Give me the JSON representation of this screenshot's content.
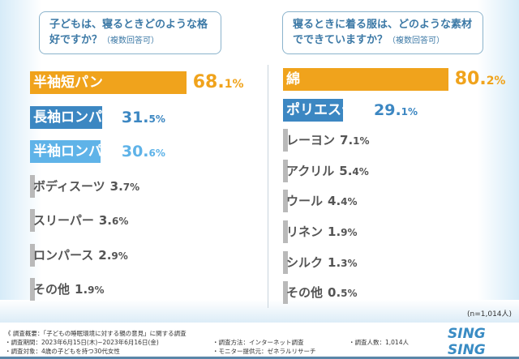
{
  "chart_data": [
    {
      "type": "bar",
      "orientation": "horizontal",
      "title": "子どもは、寝るときどのような格好ですか？",
      "title_note": "（複数回答可）",
      "categories": [
        "半袖短パン",
        "長袖ロンパン",
        "半袖ロンパン",
        "ボディスーツ",
        "スリーパー",
        "ロンパース",
        "その他"
      ],
      "values": [
        68.1,
        31.5,
        30.6,
        3.7,
        3.6,
        2.9,
        1.9
      ],
      "unit": "%",
      "colors": [
        "#f0a31c",
        "#3c87c2",
        "#5fb3e8",
        "#b9b9b9",
        "#b9b9b9",
        "#b9b9b9",
        "#b9b9b9"
      ],
      "value_colors": [
        "#f0a31c",
        "#3c87c2",
        "#5fb3e8",
        "#555555",
        "#555555",
        "#555555",
        "#555555"
      ]
    },
    {
      "type": "bar",
      "orientation": "horizontal",
      "title": "寝るときに着る服は、どのような素材でできていますか？",
      "title_note": "（複数回答可）",
      "categories": [
        "綿",
        "ポリエステル",
        "レーヨン",
        "アクリル",
        "ウール",
        "リネン",
        "シルク",
        "その他"
      ],
      "values": [
        80.2,
        29.1,
        7.1,
        5.4,
        4.4,
        1.9,
        1.3,
        0.5
      ],
      "unit": "%",
      "colors": [
        "#f0a31c",
        "#3c87c2",
        "#b9b9b9",
        "#b9b9b9",
        "#b9b9b9",
        "#b9b9b9",
        "#b9b9b9",
        "#b9b9b9"
      ],
      "value_colors": [
        "#f0a31c",
        "#3c87c2",
        "#555555",
        "#555555",
        "#555555",
        "#555555",
        "#555555",
        "#555555"
      ]
    }
  ],
  "sample": "(n=1,014人)",
  "notes": {
    "overview": "《 調査概要：「子どもの睡眠環境に対する親の意見」に関する調査",
    "period": "・調査期間：2023年6月15日(木)~2023年6月16日(金)",
    "target": "・調査対象：4歳の子どもを持つ30代女性",
    "method": "・調査方法：インターネット調査",
    "monitor": "・モニター提供元：ゼネラルリサーチ",
    "count": "・調査人数：1,014人"
  },
  "logo": "SING SING"
}
